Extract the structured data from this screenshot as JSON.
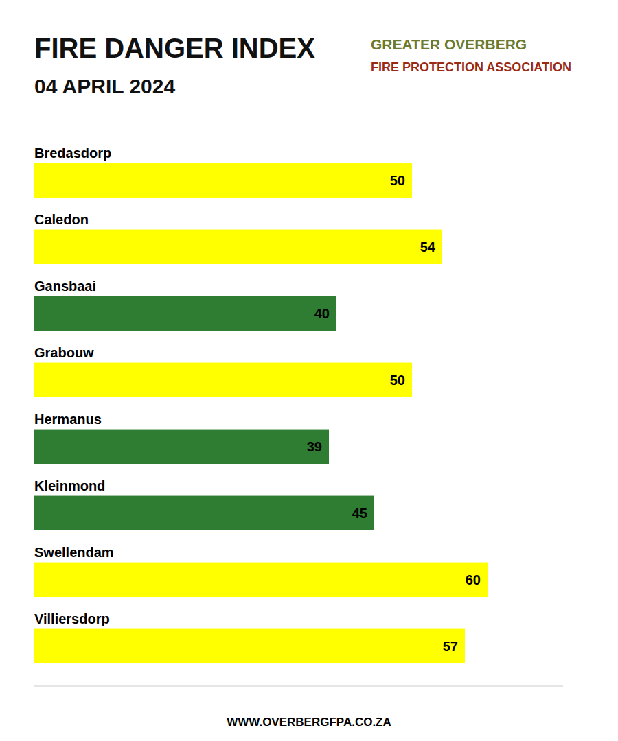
{
  "chart_data": {
    "type": "bar",
    "orientation": "horizontal",
    "title": "FIRE DANGER INDEX",
    "subtitle": "04 APRIL 2024",
    "categories": [
      "Bredasdorp",
      "Caledon",
      "Gansbaai",
      "Grabouw",
      "Hermanus",
      "Kleinmond",
      "Swellendam",
      "Villiersdorp"
    ],
    "values": [
      50,
      54,
      40,
      50,
      39,
      45,
      60,
      57
    ],
    "colors": [
      "#FFFF00",
      "#FFFF00",
      "#2E7D32",
      "#FFFF00",
      "#2E7D32",
      "#2E7D32",
      "#FFFF00",
      "#FFFF00"
    ],
    "xlim": [
      0,
      70
    ],
    "data_labels": true,
    "tick_labels": false,
    "grid": false,
    "annotations": [
      "GREATER OVERBERG",
      "FIRE PROTECTION ASSOCIATION",
      "WWW.OVERBERGFPA.CO.ZA"
    ]
  }
}
